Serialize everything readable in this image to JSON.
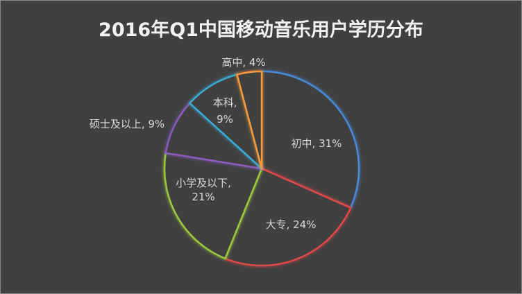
{
  "chart_data": {
    "type": "pie",
    "title": "2016年Q1中国移动音乐用户学历分布",
    "slices": [
      {
        "label": "初中",
        "value": 31,
        "display": "初中, 31%",
        "color": "#4a8ad8"
      },
      {
        "label": "大专",
        "value": 24,
        "display": "大专, 24%",
        "color": "#e04848"
      },
      {
        "label": "小学及以下",
        "value": 21,
        "display": "小学及以下, 21%",
        "color": "#9cc840"
      },
      {
        "label": "硕士及以上",
        "value": 9,
        "display": "硕士及以上, 9%",
        "color": "#8a5cc0"
      },
      {
        "label": "本科",
        "value": 9,
        "display": "本科, 9%",
        "color": "#3aaed8"
      },
      {
        "label": "高中",
        "value": 4,
        "display": "高中, 4%",
        "color": "#f59a3c"
      }
    ],
    "background": "#404040",
    "legend": "none"
  }
}
